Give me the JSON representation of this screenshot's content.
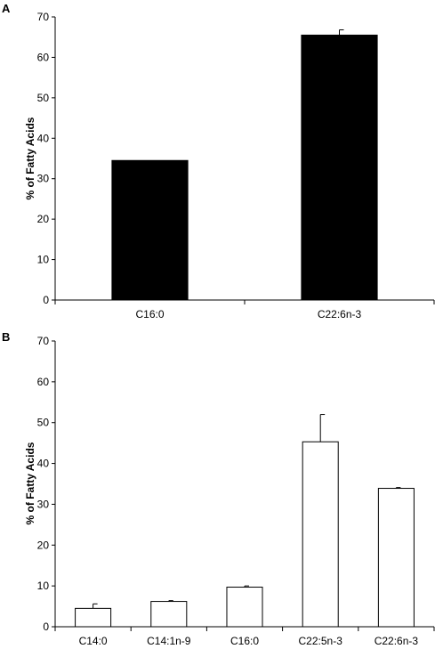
{
  "chart_data": [
    {
      "panel": "A",
      "type": "bar",
      "categories": [
        "C16:0",
        "C22:6n-3"
      ],
      "values": [
        34.5,
        65.5
      ],
      "errors": [
        0,
        1.3
      ],
      "ylabel": "% of Fatty Acids",
      "ylim": [
        0,
        70
      ],
      "yticks": [
        0,
        10,
        20,
        30,
        40,
        50,
        60,
        70
      ],
      "bar_color": "#000000",
      "grid": false
    },
    {
      "panel": "B",
      "type": "bar",
      "categories": [
        "C14:0",
        "C14:1n-9",
        "C16:0",
        "C22:5n-3",
        "C22:6n-3"
      ],
      "values": [
        4.5,
        6.2,
        9.7,
        45.3,
        33.9
      ],
      "errors": [
        1.1,
        0.2,
        0.3,
        6.7,
        0.2
      ],
      "ylabel": "% of Fatty Acids",
      "ylim": [
        0,
        70
      ],
      "yticks": [
        0,
        10,
        20,
        30,
        40,
        50,
        60,
        70
      ],
      "bar_color": "#ffffff",
      "grid": false
    }
  ]
}
